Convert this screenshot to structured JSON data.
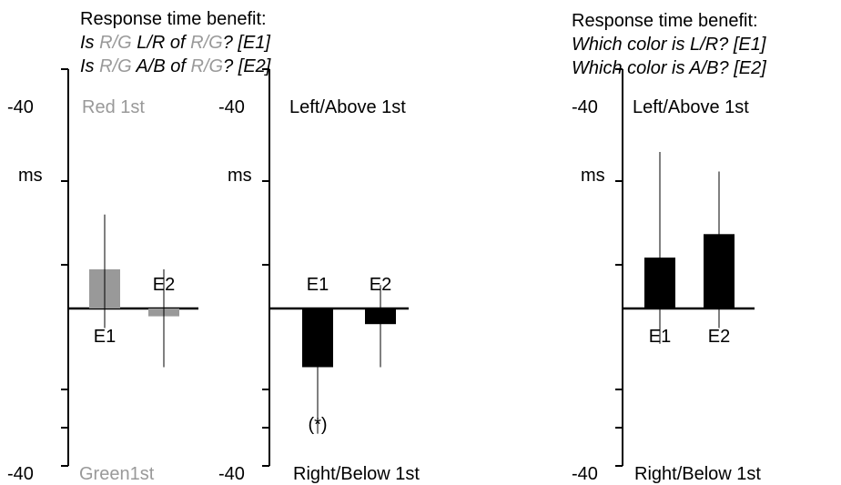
{
  "colors": {
    "red_first": "#999999",
    "black": "#000000",
    "label_gray": "#999999"
  },
  "headers": {
    "left": {
      "title": "Response time benefit:",
      "line1": {
        "prefix": "Is ",
        "c1": "R/G",
        "mid": " L/R of ",
        "c2": "R/G",
        "suffix": "? [E1]"
      },
      "line2": {
        "prefix": "Is ",
        "c1": "R/G",
        "mid": " A/B of ",
        "c2": "R/G",
        "suffix": "? [E2]"
      }
    },
    "right": {
      "title": "Response time benefit:",
      "line1": "Which color is L/R? [E1]",
      "line2": "Which color is A/B? [E2]"
    }
  },
  "chart_data": [
    {
      "type": "bar",
      "id": "color-first",
      "categories": [
        "E1",
        "E2"
      ],
      "values": [
        10,
        -2
      ],
      "errors": [
        [
          -5,
          24
        ],
        [
          -15,
          10
        ]
      ],
      "bar_color": "#999999",
      "top_label": "Red 1st",
      "bottom_label": "Green1st",
      "label_color": "#999999",
      "ytick_top": "-40",
      "ytick_bottom": "-40",
      "yunit": "ms",
      "ylim": [
        -40,
        40
      ],
      "annotation": ""
    },
    {
      "type": "bar",
      "id": "location-first",
      "categories": [
        "E1",
        "E2"
      ],
      "values": [
        -15,
        -4
      ],
      "errors": [
        [
          -32,
          0
        ],
        [
          -15,
          6
        ]
      ],
      "bar_color": "#000000",
      "top_label": "Left/Above 1st",
      "bottom_label": "Right/Below 1st",
      "label_color": "#000000",
      "ytick_top": "-40",
      "ytick_bottom": "-40",
      "yunit": "ms",
      "ylim": [
        -40,
        40
      ],
      "annotation": "(*)"
    },
    {
      "type": "bar",
      "id": "which-color",
      "categories": [
        "E1",
        "E2"
      ],
      "values": [
        13,
        19
      ],
      "errors": [
        [
          -9,
          40
        ],
        [
          -5,
          35
        ]
      ],
      "bar_color": "#000000",
      "top_label": "Left/Above 1st",
      "bottom_label": "Right/Below 1st",
      "label_color": "#000000",
      "ytick_top": "-40",
      "ytick_bottom": "-40",
      "yunit": "ms",
      "ylim": [
        -40,
        40
      ],
      "annotation": ""
    }
  ]
}
